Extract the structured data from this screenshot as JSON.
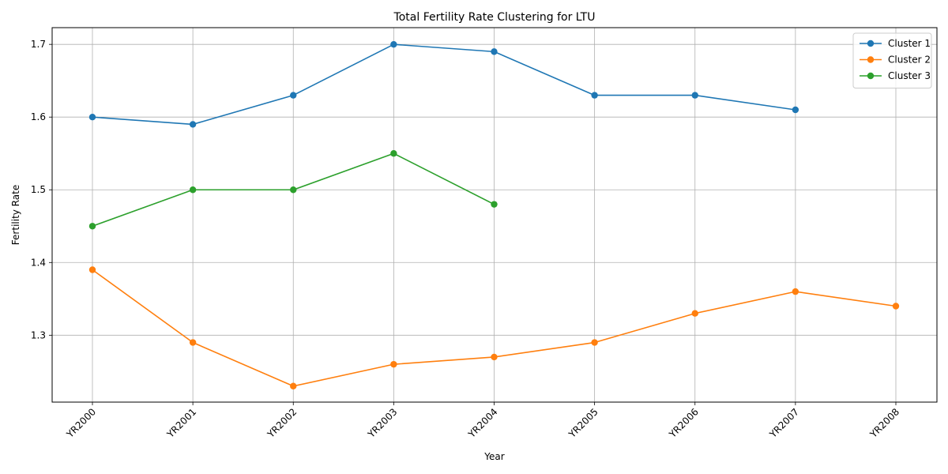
{
  "chart_data": {
    "type": "line",
    "title": "Total Fertility Rate Clustering for LTU",
    "xlabel": "Year",
    "ylabel": "Fertility Rate",
    "categories": [
      "YR2000",
      "YR2001",
      "YR2002",
      "YR2003",
      "YR2004",
      "YR2005",
      "YR2006",
      "YR2007",
      "YR2008"
    ],
    "ylim": [
      1.208,
      1.723
    ],
    "yticks": [
      "1.3",
      "1.4",
      "1.5",
      "1.6",
      "1.7"
    ],
    "grid": true,
    "legend_position": "top-right",
    "marker": "circle",
    "series": [
      {
        "name": "Cluster 1",
        "color": "#1f77b4",
        "values": [
          1.6,
          1.59,
          1.63,
          1.7,
          1.69,
          1.63,
          1.63,
          1.61,
          null
        ]
      },
      {
        "name": "Cluster 2",
        "color": "#ff7f0e",
        "values": [
          1.39,
          1.29,
          1.23,
          1.26,
          1.27,
          1.29,
          1.33,
          1.36,
          1.34
        ]
      },
      {
        "name": "Cluster 3",
        "color": "#2ca02c",
        "values": [
          1.45,
          1.5,
          1.5,
          1.55,
          1.48,
          null,
          null,
          null,
          null
        ]
      }
    ]
  }
}
